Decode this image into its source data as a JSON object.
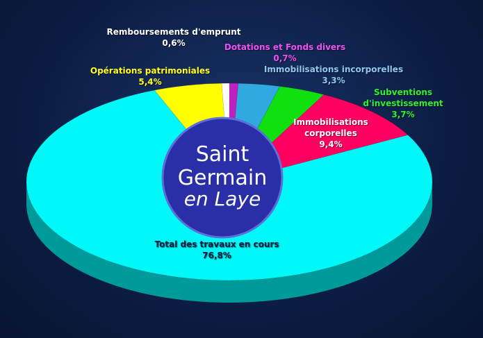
{
  "chart_data": {
    "type": "pie",
    "categories": [
      "Dotations et Fonds divers",
      "Immobilisations incorporelles",
      "Subventions d'investissement",
      "Immobilisations corporelles",
      "Total des travaux en cours",
      "Opérations patrimoniales",
      "Remboursements d'emprunt"
    ],
    "values": [
      0.7,
      3.3,
      3.7,
      9.4,
      76.8,
      5.4,
      0.6
    ],
    "value_labels": [
      "0,7%",
      "3,3%",
      "3,7%",
      "9,4%",
      "76,8%",
      "5,4%",
      "0,6%"
    ],
    "colors": [
      "#c020c0",
      "#30a8e0",
      "#10e010",
      "#ff0060",
      "#00f8f8",
      "#ffff00",
      "#ffffff"
    ],
    "label_colors": [
      "#f050f0",
      "#90c8f0",
      "#30f030",
      "#ffffff",
      "#0a1a40",
      "#ffff20",
      "#ffffff"
    ]
  },
  "logo": {
    "lines": [
      "Saint",
      "Germain",
      "en Laye"
    ]
  }
}
